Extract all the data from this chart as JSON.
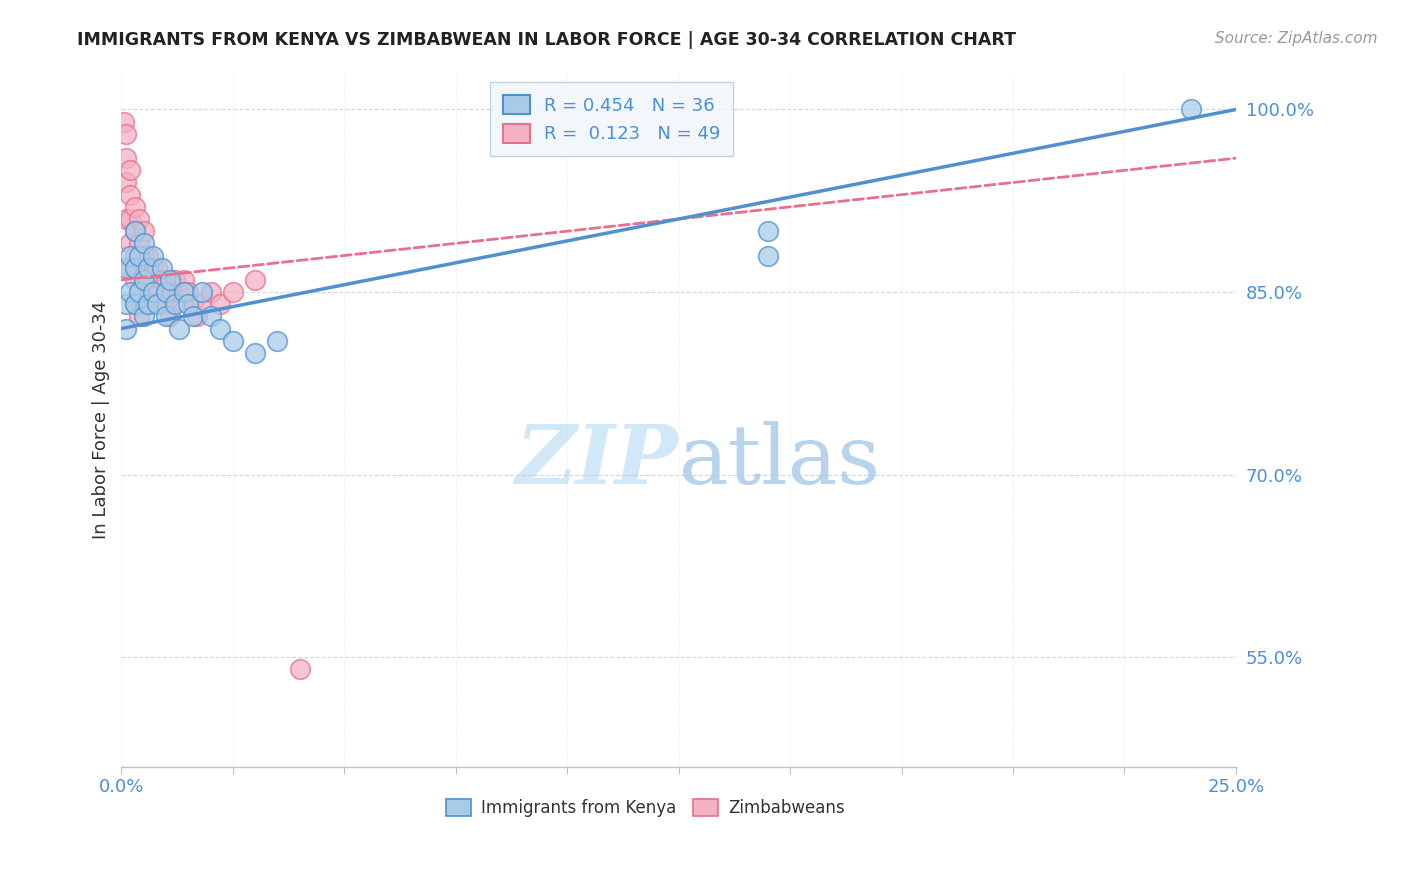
{
  "title": "IMMIGRANTS FROM KENYA VS ZIMBABWEAN IN LABOR FORCE | AGE 30-34 CORRELATION CHART",
  "source": "Source: ZipAtlas.com",
  "ylabel": "In Labor Force | Age 30-34",
  "xlim": [
    0.0,
    0.25
  ],
  "ylim": [
    0.46,
    1.03
  ],
  "yticks": [
    0.55,
    0.7,
    0.85,
    1.0
  ],
  "ytick_labels": [
    "55.0%",
    "70.0%",
    "85.0%",
    "100.0%"
  ],
  "xticks": [
    0.0,
    0.025,
    0.05,
    0.075,
    0.1,
    0.125,
    0.15,
    0.175,
    0.2,
    0.225,
    0.25
  ],
  "xtick_labels": [
    "0.0%",
    "",
    "",
    "",
    "",
    "",
    "",
    "",
    "",
    "",
    "25.0%"
  ],
  "kenya_R": 0.454,
  "kenya_N": 36,
  "zimbabwe_R": 0.123,
  "zimbabwe_N": 49,
  "kenya_color": "#a8cce8",
  "zimbabwe_color": "#f4b0c4",
  "kenya_line_color": "#5090d0",
  "zimbabwe_line_color": "#e8708a",
  "watermark_color": "#d0e8f8",
  "legend_box_color": "#f0f6fb",
  "kenya_x": [
    0.001,
    0.001,
    0.001,
    0.002,
    0.002,
    0.003,
    0.003,
    0.003,
    0.004,
    0.004,
    0.005,
    0.005,
    0.005,
    0.006,
    0.006,
    0.007,
    0.007,
    0.008,
    0.009,
    0.01,
    0.01,
    0.011,
    0.012,
    0.013,
    0.014,
    0.015,
    0.016,
    0.018,
    0.02,
    0.022,
    0.025,
    0.03,
    0.035,
    0.145,
    0.145,
    0.24
  ],
  "kenya_y": [
    0.87,
    0.84,
    0.82,
    0.88,
    0.85,
    0.9,
    0.87,
    0.84,
    0.88,
    0.85,
    0.89,
    0.86,
    0.83,
    0.87,
    0.84,
    0.88,
    0.85,
    0.84,
    0.87,
    0.85,
    0.83,
    0.86,
    0.84,
    0.82,
    0.85,
    0.84,
    0.83,
    0.85,
    0.83,
    0.82,
    0.81,
    0.8,
    0.81,
    0.88,
    0.9,
    1.0
  ],
  "zimbabwe_x": [
    0.0005,
    0.001,
    0.001,
    0.001,
    0.001,
    0.002,
    0.002,
    0.002,
    0.002,
    0.002,
    0.003,
    0.003,
    0.003,
    0.003,
    0.003,
    0.004,
    0.004,
    0.004,
    0.004,
    0.004,
    0.005,
    0.005,
    0.005,
    0.005,
    0.006,
    0.006,
    0.006,
    0.007,
    0.007,
    0.008,
    0.008,
    0.009,
    0.009,
    0.01,
    0.01,
    0.011,
    0.011,
    0.012,
    0.013,
    0.014,
    0.015,
    0.016,
    0.017,
    0.018,
    0.02,
    0.022,
    0.025,
    0.03,
    0.04
  ],
  "zimbabwe_y": [
    0.99,
    0.98,
    0.96,
    0.94,
    0.91,
    0.95,
    0.93,
    0.91,
    0.89,
    0.87,
    0.92,
    0.9,
    0.88,
    0.86,
    0.84,
    0.91,
    0.89,
    0.87,
    0.85,
    0.83,
    0.9,
    0.88,
    0.86,
    0.84,
    0.88,
    0.86,
    0.84,
    0.87,
    0.85,
    0.87,
    0.85,
    0.86,
    0.84,
    0.86,
    0.84,
    0.85,
    0.83,
    0.86,
    0.85,
    0.86,
    0.85,
    0.84,
    0.83,
    0.84,
    0.85,
    0.84,
    0.85,
    0.86,
    0.54
  ],
  "kenya_trend_x": [
    0.0,
    0.25
  ],
  "kenya_trend_y": [
    0.82,
    1.0
  ],
  "zimbabwe_trend_x": [
    0.0,
    0.25
  ],
  "zimbabwe_trend_y": [
    0.86,
    0.96
  ]
}
